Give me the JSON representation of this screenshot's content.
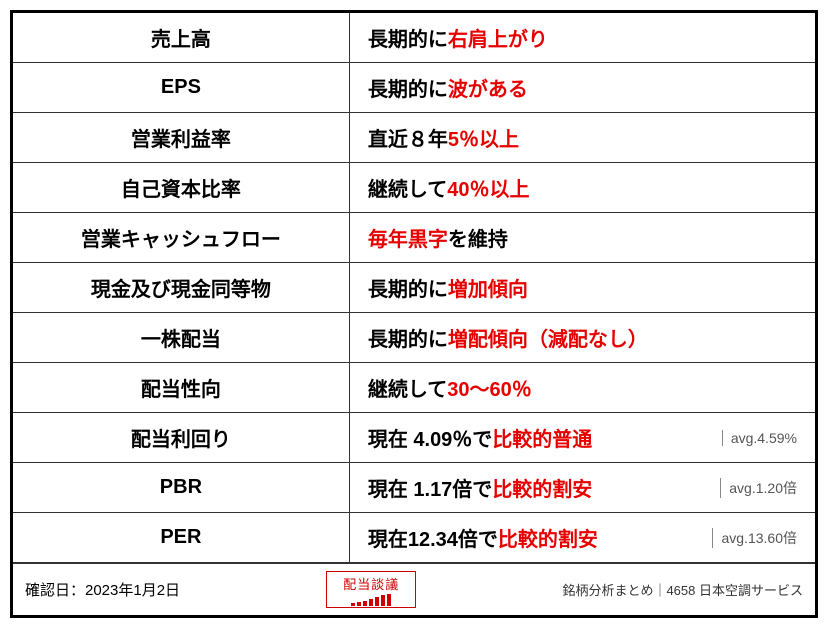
{
  "rows": [
    {
      "label": "売上高",
      "prefix": "長期的に ",
      "highlight": "右肩上がり",
      "suffix": "",
      "avg": ""
    },
    {
      "label": "EPS",
      "prefix": "長期的に ",
      "highlight": "波がある",
      "suffix": "",
      "avg": ""
    },
    {
      "label": "営業利益率",
      "prefix": "直近８年 ",
      "highlight": "5％以上",
      "suffix": "",
      "avg": ""
    },
    {
      "label": "自己資本比率",
      "prefix": "継続して ",
      "highlight": "40％以上",
      "suffix": "",
      "avg": ""
    },
    {
      "label": "営業キャッシュフロー",
      "prefix": "",
      "highlight": "毎年黒字",
      "suffix": " を維持",
      "avg": ""
    },
    {
      "label": "現金及び現金同等物",
      "prefix": "長期的に ",
      "highlight": "増加傾向",
      "suffix": "",
      "avg": ""
    },
    {
      "label": "一株配当",
      "prefix": "長期的に ",
      "highlight": "増配傾向（減配なし）",
      "suffix": "",
      "avg": ""
    },
    {
      "label": "配当性向",
      "prefix": "継続して ",
      "highlight": "30～60％",
      "suffix": "",
      "avg": ""
    },
    {
      "label": "配当利回り",
      "prefix": "現在  4.09％で ",
      "highlight": "比較的普通",
      "suffix": "",
      "avg": "avg.4.59%"
    },
    {
      "label": "PBR",
      "prefix": "現在  1.17倍で ",
      "highlight": "比較的割安",
      "suffix": "",
      "avg": "avg.1.20倍"
    },
    {
      "label": "PER",
      "prefix": "現在12.34倍で ",
      "highlight": "比較的割安",
      "suffix": "",
      "avg": "avg.13.60倍"
    }
  ],
  "footer": {
    "date_label": "確認日：2023年1月2日",
    "stamp_text": "配当談議",
    "right_text": "銘柄分析まとめ｜4658 日本空調サービス"
  }
}
